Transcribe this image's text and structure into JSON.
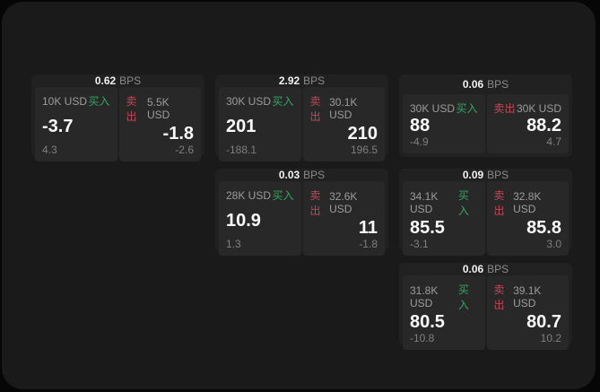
{
  "theme": {
    "buy_color": "#34a663",
    "sell_color": "#c2485a",
    "surface_color": "#1a1a1a",
    "card_color": "#212121",
    "tile_color": "#282828"
  },
  "bps_unit_label": "BPS",
  "cards": [
    {
      "row": 1,
      "col": 1,
      "bps": "0.62",
      "bps_unit": "BPS",
      "buy": {
        "amount": "10K USD",
        "action": "买入",
        "value": "-3.7",
        "delta": "4.3"
      },
      "sell": {
        "amount": "5.5K USD",
        "action": "卖出",
        "value": "-1.8",
        "delta": "-2.6"
      }
    },
    {
      "row": 1,
      "col": 2,
      "bps": "2.92",
      "bps_unit": "BPS",
      "buy": {
        "amount": "30K USD",
        "action": "买入",
        "value": "201",
        "delta": "-188.1"
      },
      "sell": {
        "amount": "30.1K USD",
        "action": "卖出",
        "value": "210",
        "delta": "196.5"
      }
    },
    {
      "row": 1,
      "col": 3,
      "bps": "0.06",
      "bps_unit": "BPS",
      "buy": {
        "amount": "30K USD",
        "action": "买入",
        "value": "88",
        "delta": "-4.9"
      },
      "sell": {
        "amount": "30K USD",
        "action": "卖出",
        "value": "88.2",
        "delta": "4.7"
      }
    },
    {
      "row": 2,
      "col": 2,
      "bps": "0.03",
      "bps_unit": "BPS",
      "buy": {
        "amount": "28K USD",
        "action": "买入",
        "value": "10.9",
        "delta": "1.3"
      },
      "sell": {
        "amount": "32.6K USD",
        "action": "卖出",
        "value": "11",
        "delta": "-1.8"
      }
    },
    {
      "row": 2,
      "col": 3,
      "bps": "0.09",
      "bps_unit": "BPS",
      "buy": {
        "amount": "34.1K USD",
        "action": "买入",
        "value": "85.5",
        "delta": "-3.1"
      },
      "sell": {
        "amount": "32.8K USD",
        "action": "卖出",
        "value": "85.8",
        "delta": "3.0"
      }
    },
    {
      "row": 3,
      "col": 3,
      "bps": "0.06",
      "bps_unit": "BPS",
      "buy": {
        "amount": "31.8K USD",
        "action": "买入",
        "value": "80.5",
        "delta": "-10.8"
      },
      "sell": {
        "amount": "39.1K USD",
        "action": "卖出",
        "value": "80.7",
        "delta": "10.2"
      }
    }
  ]
}
